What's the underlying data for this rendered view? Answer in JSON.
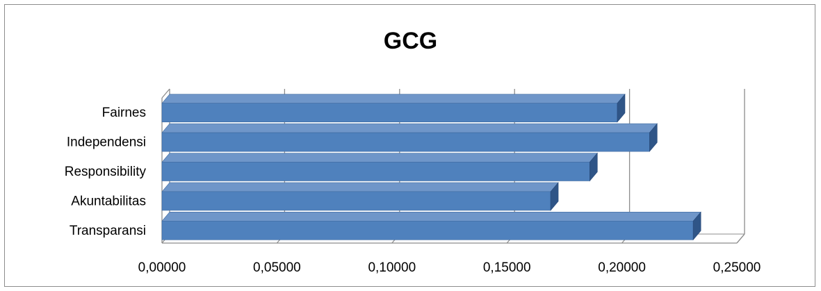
{
  "chart_data": {
    "type": "bar",
    "orientation": "horizontal",
    "title": "GCG",
    "xlabel": "",
    "ylabel": "",
    "categories": [
      "Transparansi",
      "Akuntabilitas",
      "Responsibility",
      "Independensi",
      "Fairnes"
    ],
    "values": [
      0.231,
      0.169,
      0.186,
      0.212,
      0.198
    ],
    "xlim": [
      0,
      0.25
    ],
    "xticks": [
      "0,00000",
      "0,05000",
      "0,10000",
      "0,15000",
      "0,20000",
      "0,25000"
    ],
    "grid": true,
    "legend": "none",
    "style": "3d",
    "colors": {
      "bar_front": "#4f81bd",
      "bar_top": "#6f96c9",
      "bar_side": "#2f5587",
      "grid": "#8c8c8c"
    }
  }
}
